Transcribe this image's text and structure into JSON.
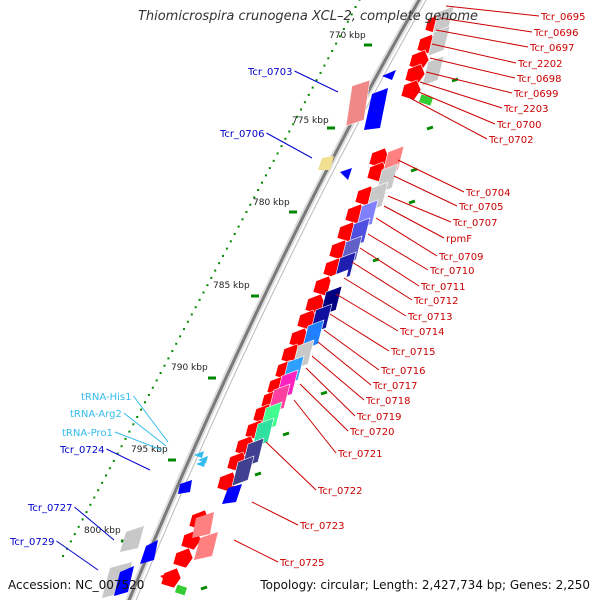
{
  "title": "Thiomicrospira crunogena XCL–2, complete genome",
  "footer": {
    "accession": "Accession: NC_007520",
    "summary": "Topology: circular; Length: 2,427,734 bp; Genes: 2,250"
  },
  "colors": {
    "backbone": "#7a7a7a",
    "forward_gene": "#ff0000",
    "reverse_gene": "#0000ff",
    "right_label": "#cc0000",
    "left_label": "#0000cc",
    "trna_label": "#33bbee",
    "tick": "#008800"
  },
  "scale_ticks": [
    {
      "label": "770 kbp"
    },
    {
      "label": "775 kbp"
    },
    {
      "label": "780 kbp"
    },
    {
      "label": "785 kbp"
    },
    {
      "label": "790 kbp"
    },
    {
      "label": "795 kbp"
    },
    {
      "label": "800 kbp"
    }
  ],
  "right_labels": [
    {
      "label": "Tcr_0695"
    },
    {
      "label": "Tcr_0696"
    },
    {
      "label": "Tcr_0697"
    },
    {
      "label": "Tcr_2202"
    },
    {
      "label": "Tcr_0698"
    },
    {
      "label": "Tcr_0699"
    },
    {
      "label": "Tcr_2203"
    },
    {
      "label": "Tcr_0700"
    },
    {
      "label": "Tcr_0702"
    },
    {
      "label": "Tcr_0704"
    },
    {
      "label": "Tcr_0705"
    },
    {
      "label": "Tcr_0707"
    },
    {
      "label": "rpmF"
    },
    {
      "label": "Tcr_0709"
    },
    {
      "label": "Tcr_0710"
    },
    {
      "label": "Tcr_0711"
    },
    {
      "label": "Tcr_0712"
    },
    {
      "label": "Tcr_0713"
    },
    {
      "label": "Tcr_0714"
    },
    {
      "label": "Tcr_0715"
    },
    {
      "label": "Tcr_0716"
    },
    {
      "label": "Tcr_0717"
    },
    {
      "label": "Tcr_0718"
    },
    {
      "label": "Tcr_0719"
    },
    {
      "label": "Tcr_0720"
    },
    {
      "label": "Tcr_0721"
    },
    {
      "label": "Tcr_0722"
    },
    {
      "label": "Tcr_0723"
    },
    {
      "label": "Tcr_0725"
    }
  ],
  "left_labels": [
    {
      "label": "Tcr_0703",
      "kind": "gene"
    },
    {
      "label": "Tcr_0706",
      "kind": "gene"
    },
    {
      "label": "tRNA-His1",
      "kind": "trna"
    },
    {
      "label": "tRNA-Arg2",
      "kind": "trna"
    },
    {
      "label": "tRNA-Pro1",
      "kind": "trna"
    },
    {
      "label": "Tcr_0724",
      "kind": "gene"
    },
    {
      "label": "Tcr_0727",
      "kind": "gene"
    },
    {
      "label": "Tcr_0729",
      "kind": "gene"
    }
  ]
}
